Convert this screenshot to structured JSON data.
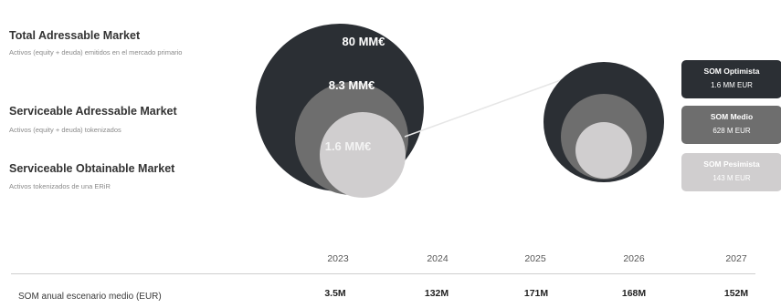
{
  "legend": {
    "tam": {
      "title": "Total Adressable Market",
      "subtitle": "Activos (equity + deuda) emitidos en el mercado primario"
    },
    "sam": {
      "title": "Serviceable Adressable Market",
      "subtitle": "Activos (equity + deuda) tokenizados"
    },
    "som": {
      "title": "Serviceable Obtainable Market",
      "subtitle": "Activos tokenizados de una ERiR"
    }
  },
  "circles": {
    "tam_value": "80 MM€",
    "sam_value": "8.3 MM€",
    "som_value": "1.6 MM€"
  },
  "scenarios": [
    {
      "name": "SOM Optimista",
      "value": "1.6 MM EUR",
      "color": "#2b2f34"
    },
    {
      "name": "SOM Medio",
      "value": "628 M EUR",
      "color": "#6e6e6e"
    },
    {
      "name": "SOM Pesimista",
      "value": "143 M EUR",
      "color": "#d0cecf"
    }
  ],
  "table": {
    "years": [
      "2023",
      "2024",
      "2025",
      "2026",
      "2027"
    ],
    "row_label": "SOM anual escenario medio (EUR)",
    "values": [
      "3.5M",
      "132M",
      "171M",
      "168M",
      "152M"
    ]
  },
  "colors": {
    "dark": "#2b2f34",
    "mid": "#6e6e6e",
    "light": "#d0cecf"
  }
}
